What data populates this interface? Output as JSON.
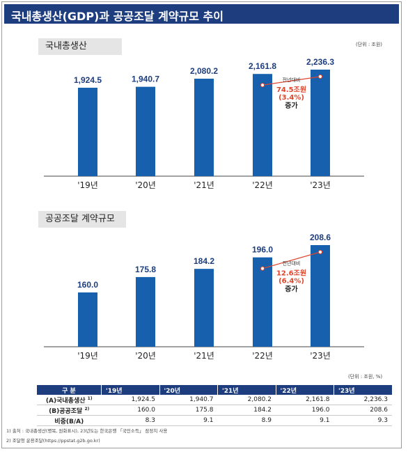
{
  "title": "국내총생산(GDP)과 공공조달 계약규모 추이",
  "colors": {
    "header": "#1d3d7e",
    "bar": "#1760ad",
    "accent": "#e0452b"
  },
  "chart_data": [
    {
      "type": "bar",
      "section_label": "국내총생산",
      "unit": "(단위 : 조원)",
      "categories": [
        "'19년",
        "'20년",
        "'21년",
        "'22년",
        "'23년"
      ],
      "values": [
        1924.5,
        1940.7,
        2080.2,
        2161.8,
        2236.3
      ],
      "value_labels": [
        "1,924.5",
        "1,940.7",
        "2,080.2",
        "2,161.8",
        "2,236.3"
      ],
      "annotation": {
        "from": 3,
        "to": 4,
        "line1": "전년대비",
        "line2": "74.5조원",
        "line3": "(3.4%)",
        "line4": "증가"
      }
    },
    {
      "type": "bar",
      "section_label": "공공조달 계약규모",
      "unit": "",
      "categories": [
        "'19년",
        "'20년",
        "'21년",
        "'22년",
        "'23년"
      ],
      "values": [
        160.0,
        175.8,
        184.2,
        196.0,
        208.6
      ],
      "value_labels": [
        "160.0",
        "175.8",
        "184.2",
        "196.0",
        "208.6"
      ],
      "annotation": {
        "from": 3,
        "to": 4,
        "line1": "전년대비",
        "line2": "12.6조원",
        "line3": "(6.4%)",
        "line4": "증가"
      }
    }
  ],
  "table": {
    "unit": "(단위 : 조원, %)",
    "headers": [
      "구 분",
      "'19년",
      "'20년",
      "'21년",
      "'22년",
      "'23년"
    ],
    "rows": [
      {
        "label": "(A)국내총생산",
        "sup": "1)",
        "values": [
          "1,924.5",
          "1,940.7",
          "2,080.2",
          "2,161.8",
          "2,236.3"
        ]
      },
      {
        "label": "(B)공공조달",
        "sup": "2)",
        "values": [
          "160.0",
          "175.8",
          "184.2",
          "196.0",
          "208.6"
        ]
      },
      {
        "label": "비중(B/A)",
        "sup": "",
        "values": [
          "8.3",
          "9.1",
          "8.9",
          "9.1",
          "9.3"
        ]
      }
    ]
  },
  "footnotes": [
    "1) 출처 : 국내총생산(명목, 원화표시), 23년도는 한국은행 「국민소득」 잠정치 사용",
    "2) 조달청 운용조달(https://ppstat.g2b.go.kr)"
  ]
}
